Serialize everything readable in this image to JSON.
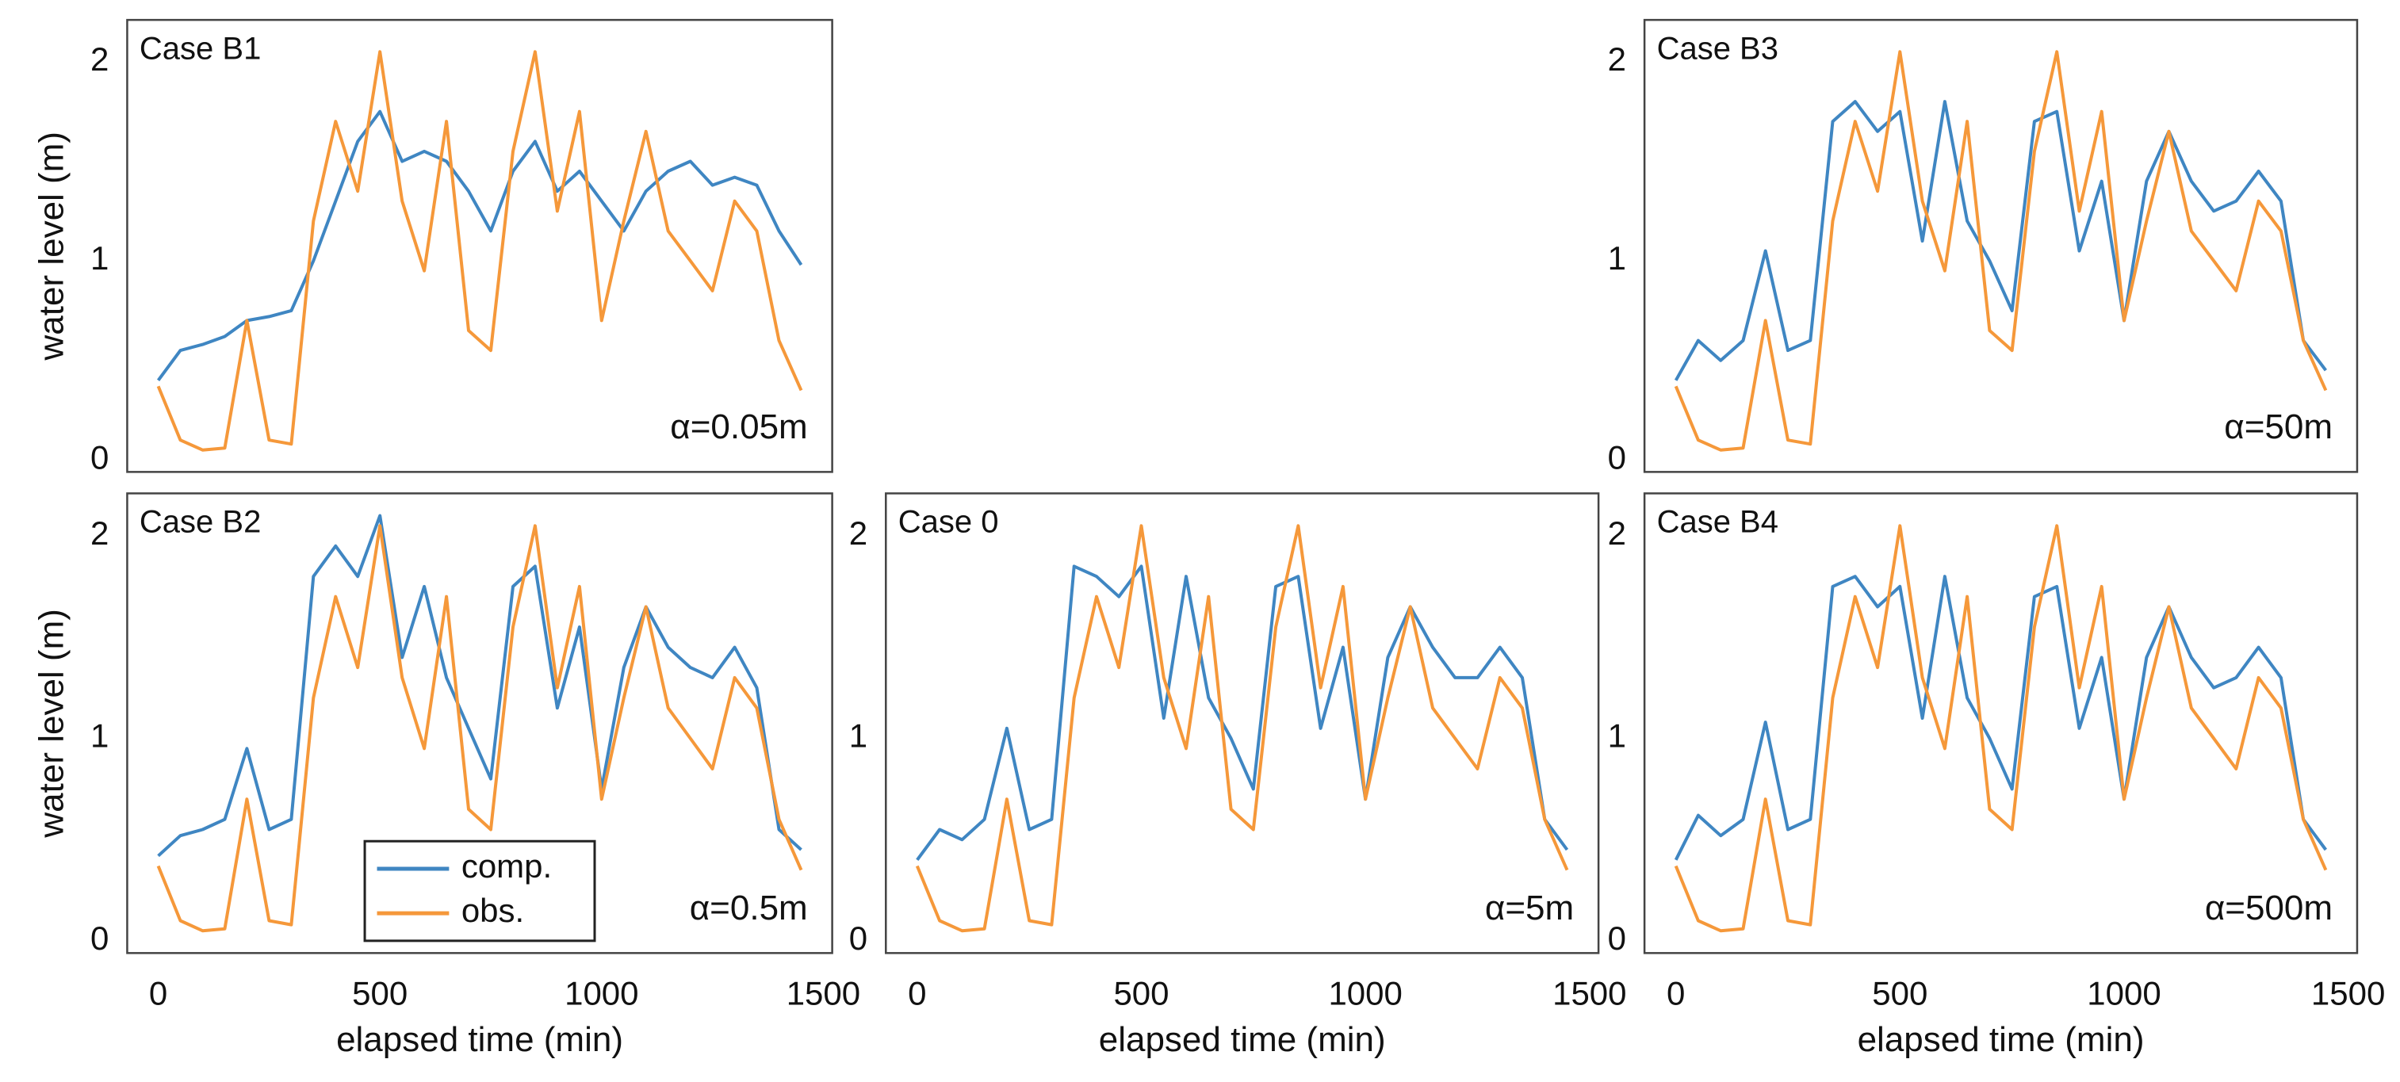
{
  "chart_data": [
    {
      "type": "line",
      "title": "Case B1",
      "annotation": "α=0.05m",
      "ylabel": "water level (m)",
      "x": [
        0,
        50,
        100,
        150,
        200,
        250,
        300,
        350,
        400,
        450,
        500,
        550,
        600,
        650,
        700,
        750,
        800,
        850,
        900,
        950,
        1000,
        1050,
        1100,
        1150,
        1200,
        1250,
        1300,
        1350,
        1400,
        1450
      ],
      "xlim": [
        -70,
        1520
      ],
      "ylim": [
        -0.06,
        2.21
      ],
      "yticks": [
        0,
        1,
        2
      ],
      "series": [
        {
          "name": "comp.",
          "color": "#3f86c2",
          "values": [
            0.4,
            0.55,
            0.58,
            0.62,
            0.7,
            0.72,
            0.75,
            1.0,
            1.3,
            1.6,
            1.75,
            1.5,
            1.55,
            1.5,
            1.35,
            1.15,
            1.45,
            1.6,
            1.35,
            1.45,
            1.3,
            1.15,
            1.35,
            1.45,
            1.5,
            1.38,
            1.42,
            1.38,
            1.15,
            0.98
          ]
        },
        {
          "name": "obs.",
          "color": "#f5983a",
          "values": [
            0.37,
            0.1,
            0.05,
            0.06,
            0.7,
            0.1,
            0.08,
            1.2,
            1.7,
            1.35,
            2.05,
            1.3,
            0.95,
            1.7,
            0.65,
            0.55,
            1.55,
            2.05,
            1.25,
            1.75,
            0.7,
            1.2,
            1.65,
            1.15,
            1.0,
            0.85,
            1.3,
            1.15,
            0.6,
            0.35
          ]
        }
      ]
    },
    {
      "type": "line",
      "title": "Case B3",
      "annotation": "α=50m",
      "x": [
        0,
        50,
        100,
        150,
        200,
        250,
        300,
        350,
        400,
        450,
        500,
        550,
        600,
        650,
        700,
        750,
        800,
        850,
        900,
        950,
        1000,
        1050,
        1100,
        1150,
        1200,
        1250,
        1300,
        1350,
        1400,
        1450
      ],
      "xlim": [
        -70,
        1520
      ],
      "ylim": [
        -0.06,
        2.21
      ],
      "yticks": [
        0,
        1,
        2
      ],
      "series": [
        {
          "name": "comp.",
          "color": "#3f86c2",
          "values": [
            0.4,
            0.6,
            0.5,
            0.6,
            1.05,
            0.55,
            0.6,
            1.7,
            1.8,
            1.65,
            1.75,
            1.1,
            1.8,
            1.2,
            1.0,
            0.75,
            1.7,
            1.75,
            1.05,
            1.4,
            0.7,
            1.4,
            1.65,
            1.4,
            1.25,
            1.3,
            1.45,
            1.3,
            0.6,
            0.45
          ]
        },
        {
          "name": "obs.",
          "color": "#f5983a",
          "values": [
            0.37,
            0.1,
            0.05,
            0.06,
            0.7,
            0.1,
            0.08,
            1.2,
            1.7,
            1.35,
            2.05,
            1.3,
            0.95,
            1.7,
            0.65,
            0.55,
            1.55,
            2.05,
            1.25,
            1.75,
            0.7,
            1.2,
            1.65,
            1.15,
            1.0,
            0.85,
            1.3,
            1.15,
            0.6,
            0.35
          ]
        }
      ]
    },
    {
      "type": "line",
      "title": "Case B2",
      "annotation": "α=0.5m",
      "ylabel": "water level (m)",
      "xlabel": "elapsed time (min)",
      "legend": "lower center",
      "x": [
        0,
        50,
        100,
        150,
        200,
        250,
        300,
        350,
        400,
        450,
        500,
        550,
        600,
        650,
        700,
        750,
        800,
        850,
        900,
        950,
        1000,
        1050,
        1100,
        1150,
        1200,
        1250,
        1300,
        1350,
        1400,
        1450
      ],
      "xlim": [
        -70,
        1520
      ],
      "xticks": [
        0,
        500,
        1000,
        1500
      ],
      "ylim": [
        -0.06,
        2.21
      ],
      "yticks": [
        0,
        1,
        2
      ],
      "series": [
        {
          "name": "comp.",
          "color": "#3f86c2",
          "values": [
            0.42,
            0.52,
            0.55,
            0.6,
            0.95,
            0.55,
            0.6,
            1.8,
            1.95,
            1.8,
            2.1,
            1.4,
            1.75,
            1.3,
            1.05,
            0.8,
            1.75,
            1.85,
            1.15,
            1.55,
            0.75,
            1.35,
            1.65,
            1.45,
            1.35,
            1.3,
            1.45,
            1.25,
            0.55,
            0.45
          ]
        },
        {
          "name": "obs.",
          "color": "#f5983a",
          "values": [
            0.37,
            0.1,
            0.05,
            0.06,
            0.7,
            0.1,
            0.08,
            1.2,
            1.7,
            1.35,
            2.05,
            1.3,
            0.95,
            1.7,
            0.65,
            0.55,
            1.55,
            2.05,
            1.25,
            1.75,
            0.7,
            1.2,
            1.65,
            1.15,
            1.0,
            0.85,
            1.3,
            1.15,
            0.6,
            0.35
          ]
        }
      ]
    },
    {
      "type": "line",
      "title": "Case 0",
      "annotation": "α=5m",
      "xlabel": "elapsed time (min)",
      "x": [
        0,
        50,
        100,
        150,
        200,
        250,
        300,
        350,
        400,
        450,
        500,
        550,
        600,
        650,
        700,
        750,
        800,
        850,
        900,
        950,
        1000,
        1050,
        1100,
        1150,
        1200,
        1250,
        1300,
        1350,
        1400,
        1450
      ],
      "xlim": [
        -70,
        1520
      ],
      "xticks": [
        0,
        500,
        1000,
        1500
      ],
      "ylim": [
        -0.06,
        2.21
      ],
      "yticks": [
        0,
        1,
        2
      ],
      "series": [
        {
          "name": "comp.",
          "color": "#3f86c2",
          "values": [
            0.4,
            0.55,
            0.5,
            0.6,
            1.05,
            0.55,
            0.6,
            1.85,
            1.8,
            1.7,
            1.85,
            1.1,
            1.8,
            1.2,
            1.0,
            0.75,
            1.75,
            1.8,
            1.05,
            1.45,
            0.7,
            1.4,
            1.65,
            1.45,
            1.3,
            1.3,
            1.45,
            1.3,
            0.6,
            0.45
          ]
        },
        {
          "name": "obs.",
          "color": "#f5983a",
          "values": [
            0.37,
            0.1,
            0.05,
            0.06,
            0.7,
            0.1,
            0.08,
            1.2,
            1.7,
            1.35,
            2.05,
            1.3,
            0.95,
            1.7,
            0.65,
            0.55,
            1.55,
            2.05,
            1.25,
            1.75,
            0.7,
            1.2,
            1.65,
            1.15,
            1.0,
            0.85,
            1.3,
            1.15,
            0.6,
            0.35
          ]
        }
      ]
    },
    {
      "type": "line",
      "title": "Case B4",
      "annotation": "α=500m",
      "xlabel": "elapsed time (min)",
      "x": [
        0,
        50,
        100,
        150,
        200,
        250,
        300,
        350,
        400,
        450,
        500,
        550,
        600,
        650,
        700,
        750,
        800,
        850,
        900,
        950,
        1000,
        1050,
        1100,
        1150,
        1200,
        1250,
        1300,
        1350,
        1400,
        1450
      ],
      "xlim": [
        -70,
        1520
      ],
      "xticks": [
        0,
        500,
        1000,
        1500
      ],
      "ylim": [
        -0.06,
        2.21
      ],
      "yticks": [
        0,
        1,
        2
      ],
      "series": [
        {
          "name": "comp.",
          "color": "#3f86c2",
          "values": [
            0.4,
            0.62,
            0.52,
            0.6,
            1.08,
            0.55,
            0.6,
            1.75,
            1.8,
            1.65,
            1.75,
            1.1,
            1.8,
            1.2,
            1.0,
            0.75,
            1.7,
            1.75,
            1.05,
            1.4,
            0.7,
            1.4,
            1.65,
            1.4,
            1.25,
            1.3,
            1.45,
            1.3,
            0.6,
            0.45
          ]
        },
        {
          "name": "obs.",
          "color": "#f5983a",
          "values": [
            0.37,
            0.1,
            0.05,
            0.06,
            0.7,
            0.1,
            0.08,
            1.2,
            1.7,
            1.35,
            2.05,
            1.3,
            0.95,
            1.7,
            0.65,
            0.55,
            1.55,
            2.05,
            1.25,
            1.75,
            0.7,
            1.2,
            1.65,
            1.15,
            1.0,
            0.85,
            1.3,
            1.15,
            0.6,
            0.35
          ]
        }
      ]
    }
  ]
}
